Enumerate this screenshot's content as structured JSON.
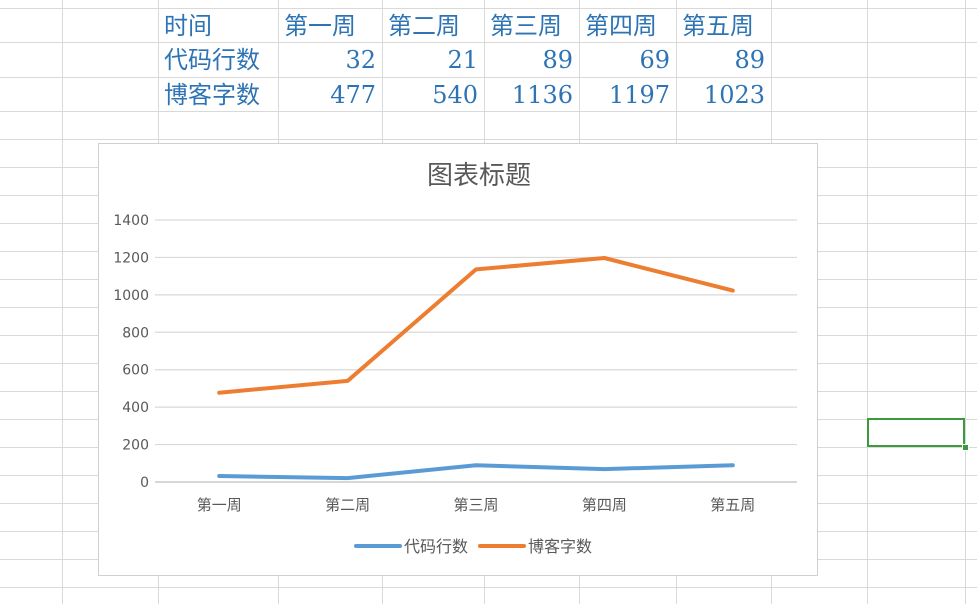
{
  "table": {
    "header": [
      "时间",
      "第一周",
      "第二周",
      "第三周",
      "第四周",
      "第五周"
    ],
    "rows": [
      {
        "label": "代码行数",
        "values": [
          "32",
          "21",
          "89",
          "69",
          "89"
        ]
      },
      {
        "label": "博客字数",
        "values": [
          "477",
          "540",
          "1136",
          "1197",
          "1023"
        ]
      }
    ]
  },
  "colors": {
    "cell_text": "#2e74b5",
    "series1": "#5b9bd5",
    "series2": "#ed7d31",
    "selection": "#3c9a3c"
  },
  "chart_data": {
    "type": "line",
    "title": "图表标题",
    "categories": [
      "第一周",
      "第二周",
      "第三周",
      "第四周",
      "第五周"
    ],
    "series": [
      {
        "name": "代码行数",
        "values": [
          32,
          21,
          89,
          69,
          89
        ],
        "color": "#5b9bd5"
      },
      {
        "name": "博客字数",
        "values": [
          477,
          540,
          1136,
          1197,
          1023
        ],
        "color": "#ed7d31"
      }
    ],
    "yticks": [
      "0",
      "200",
      "400",
      "600",
      "800",
      "1000",
      "1200",
      "1400"
    ],
    "ylim": [
      0,
      1400
    ],
    "grid": true,
    "legend": "bottom"
  }
}
